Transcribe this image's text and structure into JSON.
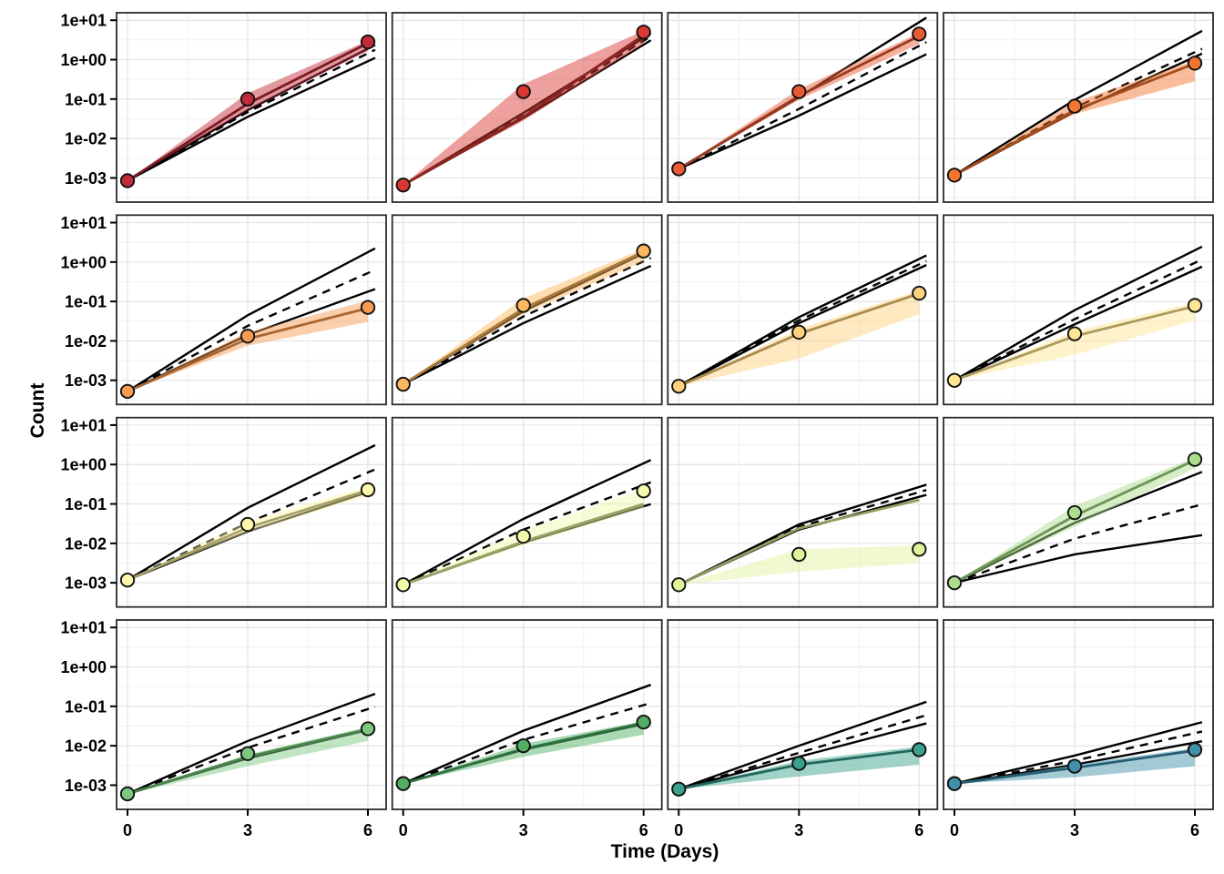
{
  "axes": {
    "x_label": "Time (Days)",
    "y_label": "Count",
    "x_ticks": [
      "0",
      "3",
      "6"
    ],
    "y_ticks": [
      "1e+01",
      "1e+00",
      "1e-01",
      "1e-02",
      "1e-03"
    ]
  },
  "chart_data": {
    "type": "line",
    "subtype": "faceted-growth-curves-4x4",
    "x": [
      0,
      3,
      6
    ],
    "xlabel": "Time (Days)",
    "ylabel": "Count",
    "y_scale": "log10",
    "ylim": [
      0.001,
      10
    ],
    "y_tick_values": [
      10,
      1,
      0.1,
      0.01,
      0.001
    ],
    "grid": true,
    "legend": false,
    "facets": [
      {
        "row": 0,
        "col": 0,
        "pt": "#C22B39",
        "ln": "#7A1B26",
        "obs": [
          0.00085,
          0.1,
          2.8
        ],
        "obs_log": [
          -3.07,
          -1.0,
          0.45
        ],
        "fit": [
          -3.07,
          -1.12,
          0.42
        ],
        "up": [
          -3.07,
          -1.28,
          0.28
        ],
        "dash": [
          -3.07,
          -1.33,
          0.16
        ],
        "low": [
          -3.07,
          -1.45,
          -0.04
        ],
        "rib": [
          -0.85,
          -1.28,
          0.48,
          0.22
        ]
      },
      {
        "row": 0,
        "col": 1,
        "pt": "#D93832",
        "ln": "#8E2521",
        "obs": [
          0.00066,
          0.155,
          5.0
        ],
        "obs_log": [
          -3.18,
          -0.81,
          0.7
        ],
        "fit": [
          -3.18,
          -1.45,
          0.62
        ],
        "up": [
          -3.18,
          -1.35,
          0.55
        ],
        "dash": [
          -3.18,
          -1.42,
          0.48
        ],
        "low": [
          -3.18,
          -1.48,
          0.38
        ],
        "rib": [
          -0.62,
          -1.55,
          0.73,
          0.4
        ]
      },
      {
        "row": 0,
        "col": 2,
        "pt": "#E95B35",
        "ln": "#9C3A20",
        "obs": [
          0.0017,
          0.155,
          4.5
        ],
        "obs_log": [
          -2.77,
          -0.81,
          0.65
        ],
        "fit": [
          -2.77,
          -0.92,
          0.6
        ],
        "up": [
          -2.77,
          -0.95,
          0.95
        ],
        "dash": [
          -2.77,
          -1.25,
          0.35
        ],
        "low": [
          -2.77,
          -1.42,
          0.05
        ],
        "rib": [
          -0.75,
          -1.02,
          0.68,
          0.4
        ]
      },
      {
        "row": 0,
        "col": 3,
        "pt": "#F2762F",
        "ln": "#A54D1D",
        "obs": [
          0.0012,
          0.066,
          0.81
        ],
        "obs_log": [
          -2.93,
          -1.18,
          -0.09
        ],
        "fit": [
          -2.93,
          -1.28,
          -0.1
        ],
        "up": [
          -2.93,
          -1.02,
          0.63
        ],
        "dash": [
          -2.93,
          -1.22,
          0.19
        ],
        "low": [
          -2.93,
          -1.32,
          0.07
        ],
        "rib": [
          -1.08,
          -1.38,
          -0.02,
          -0.55
        ]
      },
      {
        "row": 1,
        "col": 0,
        "pt": "#F99B51",
        "ln": "#AA6631",
        "obs": [
          0.00052,
          0.013,
          0.071
        ],
        "obs_log": [
          -3.28,
          -1.88,
          -1.15
        ],
        "fit": [
          -3.28,
          -1.95,
          -1.17
        ],
        "up": [
          -3.28,
          -1.35,
          0.25
        ],
        "dash": [
          -3.28,
          -1.62,
          -0.28
        ],
        "low": [
          -3.28,
          -1.85,
          -0.75
        ],
        "rib": [
          -1.78,
          -2.12,
          -0.98,
          -1.52
        ]
      },
      {
        "row": 1,
        "col": 1,
        "pt": "#FCB761",
        "ln": "#AC7A3B",
        "obs": [
          0.00079,
          0.079,
          1.9
        ],
        "obs_log": [
          -3.1,
          -1.1,
          0.28
        ],
        "fit": [
          -3.1,
          -1.18,
          0.26
        ],
        "up": [
          -3.1,
          -1.25,
          0.22
        ],
        "dash": [
          -3.1,
          -1.38,
          0.02
        ],
        "low": [
          -3.1,
          -1.55,
          -0.18
        ],
        "rib": [
          -0.92,
          -1.32,
          0.34,
          0.02
        ]
      },
      {
        "row": 1,
        "col": 2,
        "pt": "#FDD17E",
        "ln": "#AC8B4E",
        "obs": [
          0.00071,
          0.017,
          0.16
        ],
        "obs_log": [
          -3.15,
          -1.78,
          -0.79
        ],
        "fit": [
          -3.15,
          -1.82,
          -0.8
        ],
        "up": [
          -3.15,
          -1.4,
          0.08
        ],
        "dash": [
          -3.15,
          -1.48,
          -0.06
        ],
        "low": [
          -3.15,
          -1.55,
          -0.16
        ],
        "rib": [
          -1.7,
          -2.45,
          -0.72,
          -1.32
        ]
      },
      {
        "row": 1,
        "col": 3,
        "pt": "#FEE593",
        "ln": "#AD9A5D",
        "obs": [
          0.001,
          0.015,
          0.079
        ],
        "obs_log": [
          -3.0,
          -1.82,
          -1.1
        ],
        "fit": [
          -3.0,
          -1.88,
          -1.12
        ],
        "up": [
          -3.0,
          -1.22,
          0.3
        ],
        "dash": [
          -3.0,
          -1.45,
          -0.02
        ],
        "low": [
          -3.0,
          -1.58,
          -0.2
        ],
        "rib": [
          -1.75,
          -2.35,
          -1.02,
          -1.48
        ]
      },
      {
        "row": 2,
        "col": 0,
        "pt": "#FEF6AC",
        "ln": "#A8A268",
        "obs": [
          0.0012,
          0.03,
          0.23
        ],
        "obs_log": [
          -2.93,
          -1.52,
          -0.64
        ],
        "fit": [
          -2.93,
          -1.6,
          -0.65
        ],
        "up": [
          -2.93,
          -1.1,
          0.4
        ],
        "dash": [
          -2.93,
          -1.48,
          -0.2
        ],
        "low": [
          -2.93,
          -1.7,
          -0.7
        ],
        "rib": [
          -1.45,
          -1.72,
          -0.55,
          -0.8
        ]
      },
      {
        "row": 2,
        "col": 1,
        "pt": "#F3FAAB",
        "ln": "#9DA468",
        "obs": [
          0.00089,
          0.015,
          0.21
        ],
        "obs_log": [
          -3.05,
          -1.82,
          -0.67
        ],
        "fit": [
          -3.05,
          -1.95,
          -1.0
        ],
        "up": [
          -3.05,
          -1.38,
          0.03
        ],
        "dash": [
          -3.05,
          -1.65,
          -0.52
        ],
        "low": [
          -3.05,
          -1.98,
          -1.06
        ],
        "rib": [
          -1.68,
          -2.05,
          -0.62,
          -1.1
        ]
      },
      {
        "row": 2,
        "col": 2,
        "pt": "#DFF39B",
        "ln": "#8F9E5F",
        "obs": [
          0.00089,
          0.0052,
          0.007
        ],
        "obs_log": [
          -3.05,
          -2.28,
          -2.15
        ],
        "fit": [
          -3.05,
          -1.62,
          -0.9
        ],
        "up": [
          -3.05,
          -1.52,
          -0.57
        ],
        "dash": [
          -3.05,
          -1.58,
          -0.7
        ],
        "low": [
          -3.05,
          -1.65,
          -0.82
        ],
        "rib": [
          -2.15,
          -2.72,
          -2.05,
          -2.5
        ]
      },
      {
        "row": 2,
        "col": 3,
        "pt": "#ACDC8C",
        "ln": "#6B9455",
        "obs": [
          0.001,
          0.06,
          1.35
        ],
        "obs_log": [
          -3.0,
          -1.22,
          0.13
        ],
        "fit": [
          -3.0,
          -1.3,
          0.11
        ],
        "up": [
          -3.0,
          -1.48,
          -0.26
        ],
        "dash": [
          -3.0,
          -1.88,
          -1.06
        ],
        "low": [
          -3.0,
          -2.28,
          -1.82
        ],
        "rib": [
          -1.05,
          -1.58,
          0.18,
          -0.1
        ]
      },
      {
        "row": 3,
        "col": 0,
        "pt": "#7CC87F",
        "ln": "#49854C",
        "obs": [
          0.0006,
          0.0063,
          0.027
        ],
        "obs_log": [
          -3.22,
          -2.2,
          -1.57
        ],
        "fit": [
          -3.22,
          -2.28,
          -1.58
        ],
        "up": [
          -3.22,
          -1.88,
          -0.75
        ],
        "dash": [
          -3.22,
          -2.05,
          -1.07
        ],
        "low": [
          -3.22,
          -2.32,
          -1.6
        ],
        "rib": [
          -2.22,
          -2.52,
          -1.52,
          -1.88
        ]
      },
      {
        "row": 3,
        "col": 1,
        "pt": "#50AF63",
        "ln": "#2F7340",
        "obs": [
          0.0011,
          0.01,
          0.04
        ],
        "obs_log": [
          -2.96,
          -2.0,
          -1.4
        ],
        "fit": [
          -2.96,
          -2.08,
          -1.42
        ],
        "up": [
          -2.96,
          -1.62,
          -0.52
        ],
        "dash": [
          -2.96,
          -1.85,
          -0.97
        ],
        "low": [
          -2.96,
          -2.1,
          -1.45
        ],
        "rib": [
          -1.95,
          -2.28,
          -1.38,
          -1.72
        ]
      },
      {
        "row": 3,
        "col": 2,
        "pt": "#3BA18C",
        "ln": "#22685C",
        "obs": [
          0.00079,
          0.0035,
          0.0079
        ],
        "obs_log": [
          -3.1,
          -2.45,
          -2.1
        ],
        "fit": [
          -3.1,
          -2.48,
          -2.1
        ],
        "up": [
          -3.1,
          -2.0,
          -0.95
        ],
        "dash": [
          -3.1,
          -2.18,
          -1.28
        ],
        "low": [
          -3.1,
          -2.28,
          -1.48
        ],
        "rib": [
          -2.38,
          -2.78,
          -2.02,
          -2.48
        ]
      },
      {
        "row": 3,
        "col": 3,
        "pt": "#3F90A8",
        "ln": "#265F73",
        "obs": [
          0.0011,
          0.003,
          0.0079
        ],
        "obs_log": [
          -2.96,
          -2.52,
          -2.1
        ],
        "fit": [
          -2.96,
          -2.56,
          -2.12
        ],
        "up": [
          -2.96,
          -2.25,
          -1.45
        ],
        "dash": [
          -2.96,
          -2.38,
          -1.68
        ],
        "low": [
          -2.96,
          -2.48,
          -1.92
        ],
        "rib": [
          -2.48,
          -2.8,
          -2.06,
          -2.52
        ]
      }
    ],
    "style_colors": {
      "bound_lines": "#000000",
      "panel_border": "#2b2b2b",
      "grid_major": "#e3e3e3",
      "grid_minor": "#f1f1f1",
      "point_stroke": "#111111"
    }
  }
}
